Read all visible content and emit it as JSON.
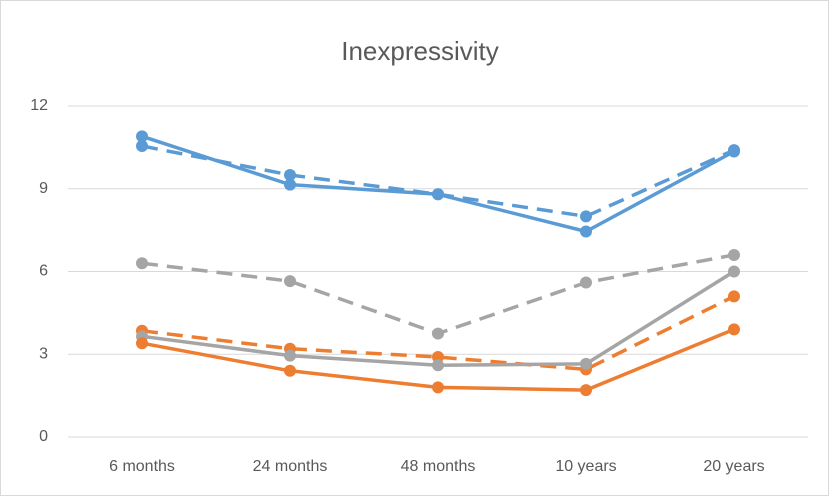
{
  "chart_data": {
    "type": "line",
    "title": "Inexpressivity",
    "categories": [
      "6 months",
      "24 months",
      "48 months",
      "10 years",
      "20 years"
    ],
    "series": [
      {
        "color": "#5b9bd5",
        "dashed": true,
        "values": [
          10.55,
          9.5,
          8.8,
          8.0,
          10.4
        ]
      },
      {
        "color": "#a5a5a5",
        "dashed": true,
        "values": [
          6.3,
          5.65,
          3.75,
          5.6,
          6.6
        ]
      },
      {
        "color": "#ed7d31",
        "dashed": true,
        "values": [
          3.85,
          3.2,
          2.9,
          2.45,
          5.1
        ]
      },
      {
        "color": "#5b9bd5",
        "dashed": false,
        "values": [
          10.9,
          9.15,
          8.8,
          7.45,
          10.35
        ]
      },
      {
        "color": "#a5a5a5",
        "dashed": false,
        "values": [
          3.65,
          2.95,
          2.6,
          2.65,
          6.0
        ]
      },
      {
        "color": "#ed7d31",
        "dashed": false,
        "values": [
          3.4,
          2.4,
          1.8,
          1.7,
          3.9
        ]
      }
    ],
    "ylim": [
      0,
      12
    ],
    "yticks": [
      0,
      3,
      6,
      9,
      12
    ],
    "grid": true
  }
}
